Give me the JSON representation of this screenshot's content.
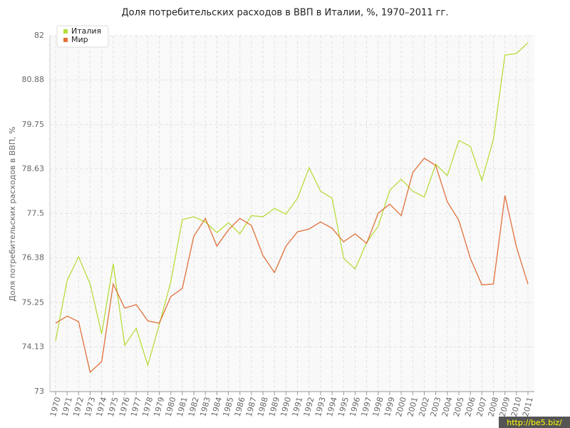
{
  "chart_data": {
    "type": "line",
    "title": "Доля потребительских расходов в ВВП в Италии, %, 1970–2011 гг.",
    "y_label": "Доля потребительских расходов в ВВП, %",
    "categories": [
      "1970",
      "1971",
      "1972",
      "1973",
      "1974",
      "1975",
      "1976",
      "1977",
      "1978",
      "1979",
      "1980",
      "1981",
      "1982",
      "1983",
      "1984",
      "1985",
      "1986",
      "1987",
      "1988",
      "1989",
      "1990",
      "1991",
      "1992",
      "1993",
      "1994",
      "1995",
      "1996",
      "1997",
      "1998",
      "1999",
      "2000",
      "2001",
      "2002",
      "2003",
      "2004",
      "2005",
      "2006",
      "2007",
      "2008",
      "2009",
      "2010",
      "2011"
    ],
    "series": [
      {
        "name": "Италия",
        "color": "#b8dc3c",
        "values": [
          74.28,
          75.81,
          76.41,
          75.72,
          74.46,
          76.23,
          74.17,
          74.6,
          73.67,
          74.69,
          75.78,
          77.35,
          77.42,
          77.29,
          77.02,
          77.27,
          76.99,
          77.45,
          77.42,
          77.63,
          77.49,
          77.89,
          78.66,
          78.07,
          77.89,
          76.37,
          76.1,
          76.77,
          77.18,
          78.09,
          78.37,
          78.07,
          77.92,
          78.75,
          78.46,
          79.35,
          79.2,
          78.34,
          79.38,
          81.51,
          81.55,
          81.82
        ]
      },
      {
        "name": "Мир",
        "color": "#e0703a",
        "values": [
          74.73,
          74.91,
          74.77,
          73.49,
          73.76,
          75.72,
          75.11,
          75.2,
          74.79,
          74.73,
          75.4,
          75.61,
          76.93,
          77.38,
          76.68,
          77.09,
          77.38,
          77.2,
          76.44,
          76.01,
          76.68,
          77.04,
          77.11,
          77.29,
          77.13,
          76.79,
          76.99,
          76.75,
          77.51,
          77.74,
          77.45,
          78.54,
          78.9,
          78.72,
          77.8,
          77.33,
          76.37,
          75.7,
          75.72,
          77.96,
          76.66,
          75.72
        ]
      }
    ],
    "ylim": [
      73,
      82
    ],
    "yticks": [
      73,
      74.13,
      75.25,
      76.38,
      77.5,
      78.63,
      79.75,
      80.88,
      82
    ],
    "grid": true
  },
  "watermark": "http://be5.biz/"
}
